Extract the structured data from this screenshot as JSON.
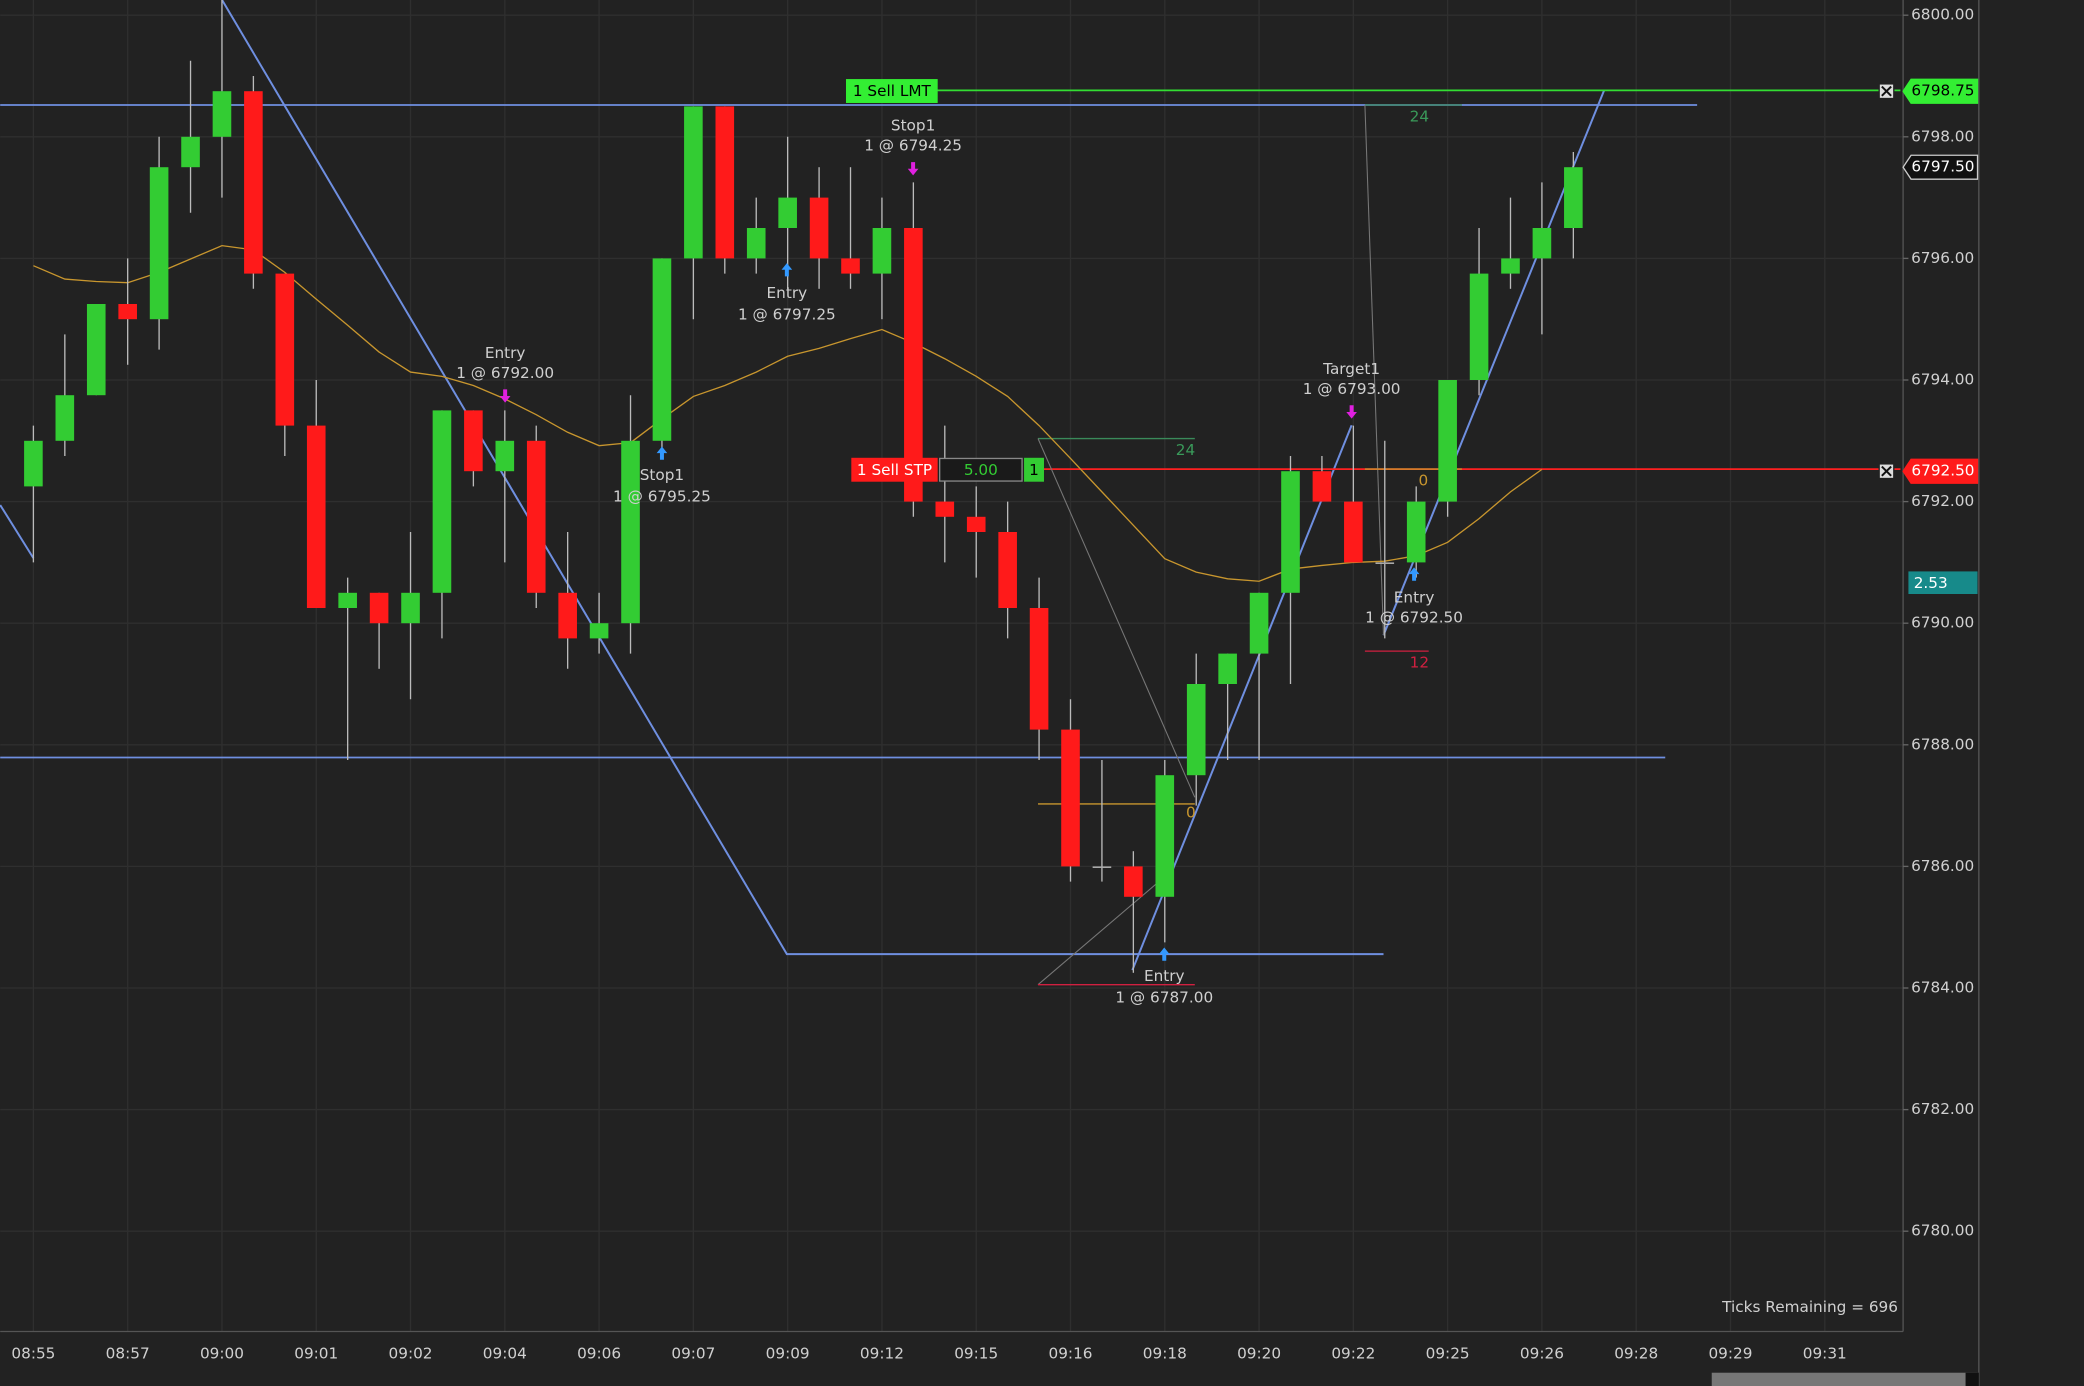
{
  "chart_data": {
    "type": "candlestick",
    "categories": [
      "08:55",
      null,
      null,
      "08:57",
      null,
      null,
      "09:00",
      null,
      null,
      "09:01",
      null,
      null,
      "09:02",
      null,
      null,
      "09:04",
      null,
      null,
      "09:06",
      null,
      null,
      "09:07",
      null,
      null,
      "09:09",
      null,
      null,
      "09:12",
      null,
      null,
      "09:15",
      null,
      null,
      "09:16",
      null,
      null,
      "09:18",
      null,
      null,
      "09:20",
      null,
      null,
      "09:22",
      null,
      null,
      "09:25",
      null,
      null,
      "09:26",
      null,
      null,
      "09:28",
      null,
      null,
      "09:29",
      null,
      null,
      "09:31"
    ],
    "open": [
      6792.25,
      6793,
      6793.75,
      6795.25,
      6795,
      6797.5,
      6798,
      6798.75,
      6795.75,
      6793.25,
      6790.25,
      6790.5,
      6790,
      6790.5,
      6793.5,
      6792.5,
      6793,
      6790.5,
      6789.75,
      6790,
      6793,
      6796,
      6798.5,
      6796,
      6796.5,
      6797,
      6796,
      6795.75,
      6796.5,
      6792,
      6791.75,
      6791.5,
      6790.25,
      6788.25,
      6786,
      6786,
      6785.5,
      6787.5,
      6789,
      6789.5,
      6790.5,
      6792.5,
      6792,
      6791,
      6791,
      6792,
      6794,
      6795.75,
      6796,
      6796.5,
      null,
      null,
      null,
      null,
      null,
      null,
      null,
      null
    ],
    "high": [
      6793.25,
      6794.75,
      6795.25,
      6796,
      6798,
      6799.25,
      6800.25,
      6799,
      6795.75,
      6794,
      6790.75,
      6790.5,
      6791.5,
      6793.5,
      6793.5,
      6793.5,
      6793.25,
      6791.5,
      6790.5,
      6793.75,
      6796,
      6798.5,
      6798.5,
      6797,
      6798,
      6797.5,
      6797.5,
      6797,
      6797.25,
      6793.25,
      6792.25,
      6792,
      6790.75,
      6788.75,
      6787.75,
      6786.25,
      6787.75,
      6789.5,
      6789.5,
      6790.5,
      6792.75,
      6792.75,
      6793.25,
      6793,
      6792.25,
      6794,
      6796.5,
      6797,
      6797.25,
      6797.75,
      null,
      null,
      null,
      null,
      null,
      null,
      null,
      null
    ],
    "low": [
      6791,
      6792.75,
      6793.75,
      6794.25,
      6794.5,
      6796.75,
      6797,
      6795.5,
      6792.75,
      6790.25,
      6787.75,
      6789.25,
      6788.75,
      6789.75,
      6792.25,
      6791,
      6790.25,
      6789.25,
      6789.5,
      6789.5,
      6792.75,
      6795,
      6795.75,
      6795.75,
      6795.5,
      6795.5,
      6795.5,
      6795,
      6791.75,
      6791,
      6790.75,
      6789.75,
      6787.75,
      6785.75,
      6785.75,
      6784.25,
      6784.75,
      6787,
      6787.75,
      6787.75,
      6789,
      6792,
      6791,
      6789.75,
      6790.75,
      6791.75,
      6793.75,
      6795.5,
      6794.75,
      6796,
      null,
      null,
      null,
      null,
      null,
      null,
      null,
      null
    ],
    "close": [
      6793,
      6793.75,
      6795.25,
      6795,
      6797.5,
      6798,
      6798.75,
      6795.75,
      6793.25,
      6790.25,
      6790.5,
      6790,
      6790.5,
      6793.5,
      6792.5,
      6793,
      6790.5,
      6789.75,
      6790,
      6793,
      6796,
      6798.5,
      6796,
      6796.5,
      6797,
      6796,
      6795.75,
      6796.5,
      6792,
      6791.75,
      6791.5,
      6790.25,
      6788.25,
      6786,
      6786,
      6785.5,
      6787.5,
      6789,
      6789.5,
      6790.5,
      6792.5,
      6792,
      6791,
      6791,
      6792,
      6794,
      6795.75,
      6796,
      6796.5,
      6797.5,
      null,
      null,
      null,
      null,
      null,
      null,
      null,
      null
    ],
    "up_color": "#33cc33",
    "down_color": "#ff1a1a",
    "moving_average": {
      "color": "#c8962e",
      "values": [
        6795.88,
        6795.66,
        6795.62,
        6795.6,
        6795.77,
        6795.99,
        6796.21,
        6796.14,
        6795.77,
        6795.33,
        6794.9,
        6794.46,
        6794.13,
        6794.06,
        6793.91,
        6793.69,
        6793.43,
        6793.14,
        6792.92,
        6792.97,
        6793.36,
        6793.73,
        6793.91,
        6794.13,
        6794.39,
        6794.52,
        6794.68,
        6794.83,
        6794.61,
        6794.35,
        6794.06,
        6793.73,
        6793.25,
        6792.71,
        6792.16,
        6791.61,
        6791.06,
        6790.84,
        6790.73,
        6790.69,
        6790.89,
        6790.95,
        6791,
        6791.02,
        6791.11,
        6791.33,
        6791.72,
        6792.16,
        6792.53,
        null,
        null,
        null,
        null,
        null,
        null,
        null,
        null,
        null
      ]
    },
    "ylim": [
      6778.35,
      6800.25
    ],
    "yticks": [
      {
        "value": 6780,
        "label": "6780.00"
      },
      {
        "value": 6782,
        "label": "6782.00"
      },
      {
        "value": 6784,
        "label": "6784.00"
      },
      {
        "value": 6786,
        "label": "6786.00"
      },
      {
        "value": 6788,
        "label": "6788.00"
      },
      {
        "value": 6790,
        "label": "6790.00"
      },
      {
        "value": 6792,
        "label": "6792.00"
      },
      {
        "value": 6794,
        "label": "6794.00"
      },
      {
        "value": 6796,
        "label": "6796.00"
      },
      {
        "value": 6798,
        "label": "6798.00"
      },
      {
        "value": 6800,
        "label": "6800.00"
      }
    ],
    "grid": true,
    "price_labels": [
      6798.75,
      {
        "value": 6797.5,
        "label": "6797.50"
      },
      {
        "value": 6792.5,
        "label": "6792.50"
      }
    ],
    "indicator_label": "2.53",
    "order_labels": [
      "1 Sell LMT",
      "1 Sell STP",
      "5.00",
      "1"
    ],
    "annotations": [
      "Entry",
      "1 @ 6792.00",
      "Stop1",
      "1 @ 6795.25",
      "Entry",
      "1 @ 6797.25",
      "Stop1",
      "1 @ 6794.25",
      "Target1",
      "1 @ 6793.00",
      "Entry",
      "1 @ 6792.50",
      "Entry",
      "1 @ 6787.00"
    ],
    "counters": [
      "24",
      "24",
      "0",
      "0",
      "12"
    ],
    "status_text": "Ticks Remaining = 696"
  }
}
